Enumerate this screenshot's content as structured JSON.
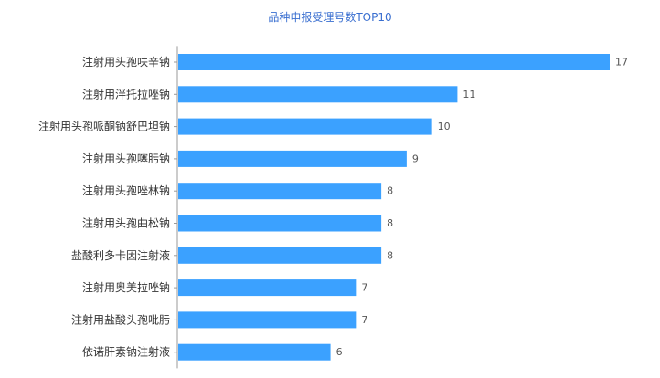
{
  "chart_data": {
    "type": "bar",
    "orientation": "horizontal",
    "title": "品种申报受理号数TOP10",
    "categories": [
      "注射用头孢呋辛钠",
      "注射用泮托拉唑钠",
      "注射用头孢哌酮钠舒巴坦钠",
      "注射用头孢噻肟钠",
      "注射用头孢唑林钠",
      "注射用头孢曲松钠",
      "盐酸利多卡因注射液",
      "注射用奥美拉唑钠",
      "注射用盐酸头孢吡肟",
      "依诺肝素钠注射液"
    ],
    "values": [
      17,
      11,
      10,
      9,
      8,
      8,
      8,
      7,
      7,
      6
    ],
    "xlim": [
      0,
      17
    ],
    "grid": false,
    "legend": "none",
    "colors": {
      "bar": "#3ba1ff",
      "title": "#3a6fd0",
      "label": "#333333",
      "value_label": "#555555",
      "axis": "#999999"
    }
  }
}
